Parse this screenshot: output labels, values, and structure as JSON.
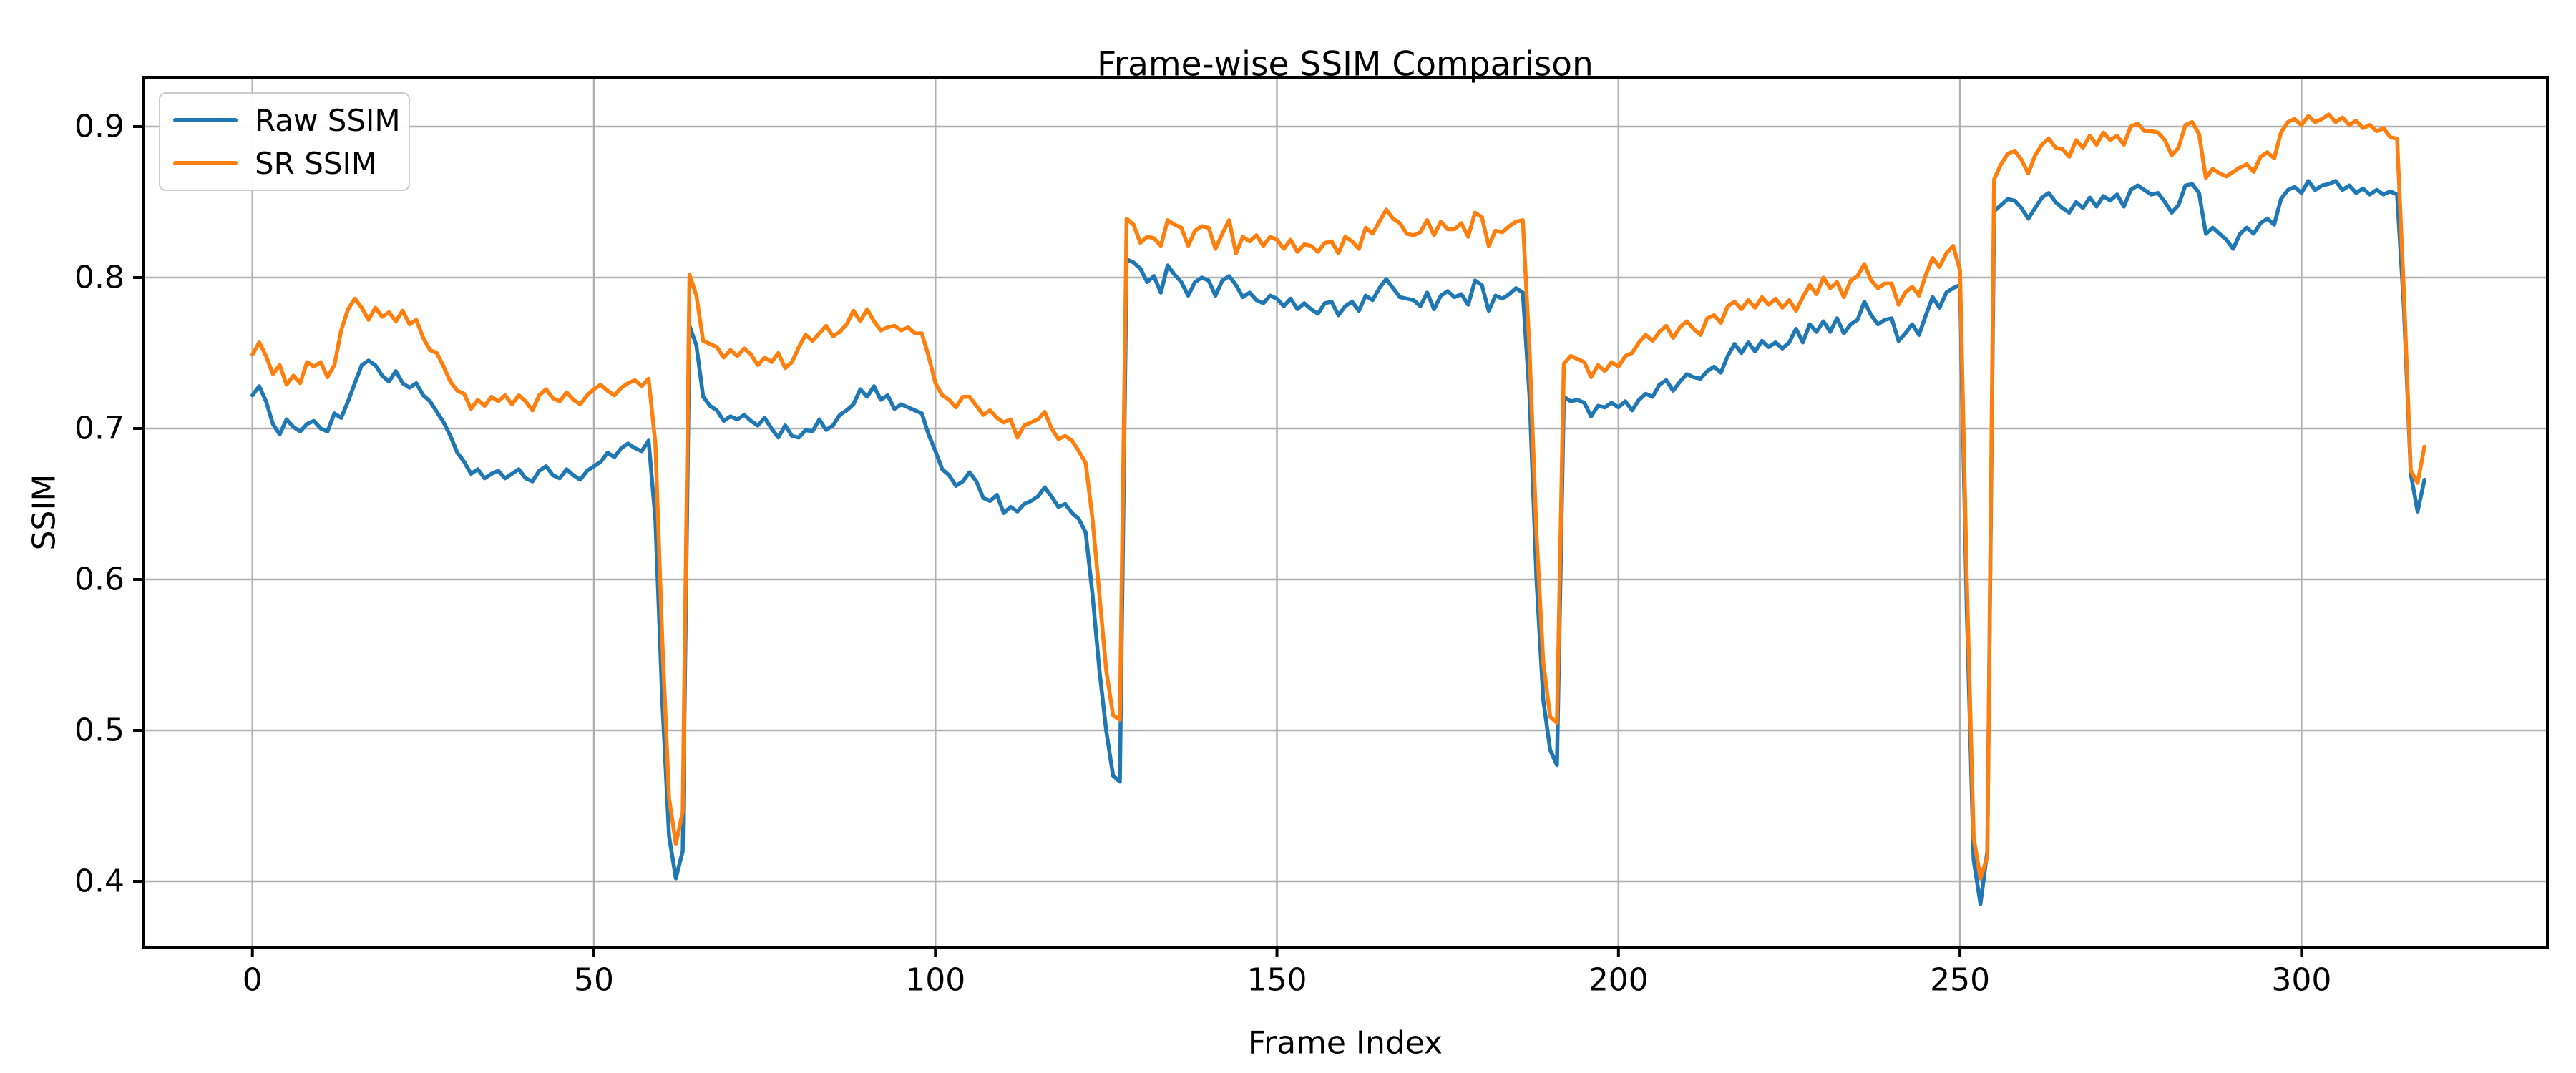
{
  "title": "Frame-wise SSIM Comparison",
  "legend": {
    "entries": [
      {
        "label": "Raw SSIM",
        "color": "#1f77b4"
      },
      {
        "label": "SR SSIM",
        "color": "#ff7f0e"
      }
    ]
  },
  "chart_data": {
    "type": "line",
    "title": "Frame-wise SSIM Comparison",
    "xlabel": "Frame Index",
    "ylabel": "SSIM",
    "xlim": [
      -16,
      336
    ],
    "ylim": [
      0.3564,
      0.9327
    ],
    "x_ticks": [
      0,
      50,
      100,
      150,
      200,
      250,
      300
    ],
    "y_ticks": [
      0.4,
      0.5,
      0.6,
      0.7,
      0.8,
      0.9
    ],
    "grid": true,
    "legend_position": "upper left",
    "x_start": 0,
    "x_step": 1,
    "series": [
      {
        "name": "Raw SSIM",
        "color": "#1f77b4",
        "values": [
          0.722,
          0.728,
          0.718,
          0.703,
          0.696,
          0.706,
          0.701,
          0.698,
          0.703,
          0.705,
          0.7,
          0.698,
          0.71,
          0.707,
          0.718,
          0.73,
          0.742,
          0.745,
          0.742,
          0.735,
          0.731,
          0.738,
          0.73,
          0.727,
          0.73,
          0.722,
          0.718,
          0.711,
          0.704,
          0.695,
          0.684,
          0.678,
          0.67,
          0.673,
          0.667,
          0.67,
          0.672,
          0.667,
          0.67,
          0.673,
          0.667,
          0.665,
          0.672,
          0.675,
          0.669,
          0.667,
          0.673,
          0.669,
          0.666,
          0.672,
          0.675,
          0.678,
          0.684,
          0.681,
          0.687,
          0.69,
          0.687,
          0.685,
          0.692,
          0.64,
          0.52,
          0.43,
          0.402,
          0.42,
          0.768,
          0.755,
          0.721,
          0.715,
          0.712,
          0.705,
          0.708,
          0.706,
          0.709,
          0.705,
          0.702,
          0.707,
          0.7,
          0.694,
          0.702,
          0.695,
          0.694,
          0.699,
          0.698,
          0.706,
          0.699,
          0.702,
          0.709,
          0.712,
          0.716,
          0.726,
          0.721,
          0.728,
          0.719,
          0.722,
          0.713,
          0.716,
          0.714,
          0.712,
          0.71,
          0.696,
          0.685,
          0.673,
          0.669,
          0.662,
          0.665,
          0.671,
          0.665,
          0.654,
          0.652,
          0.656,
          0.644,
          0.648,
          0.645,
          0.65,
          0.652,
          0.655,
          0.661,
          0.655,
          0.648,
          0.65,
          0.644,
          0.64,
          0.631,
          0.59,
          0.54,
          0.5,
          0.47,
          0.466,
          0.812,
          0.81,
          0.806,
          0.797,
          0.801,
          0.79,
          0.808,
          0.802,
          0.797,
          0.788,
          0.797,
          0.8,
          0.798,
          0.788,
          0.798,
          0.801,
          0.795,
          0.787,
          0.79,
          0.785,
          0.783,
          0.788,
          0.786,
          0.781,
          0.786,
          0.779,
          0.783,
          0.779,
          0.776,
          0.783,
          0.784,
          0.775,
          0.781,
          0.784,
          0.778,
          0.788,
          0.785,
          0.793,
          0.799,
          0.793,
          0.787,
          0.786,
          0.785,
          0.781,
          0.79,
          0.779,
          0.788,
          0.791,
          0.787,
          0.789,
          0.782,
          0.798,
          0.795,
          0.778,
          0.788,
          0.786,
          0.789,
          0.793,
          0.79,
          0.72,
          0.6,
          0.52,
          0.487,
          0.477,
          0.721,
          0.718,
          0.719,
          0.717,
          0.708,
          0.715,
          0.714,
          0.717,
          0.714,
          0.718,
          0.712,
          0.719,
          0.723,
          0.721,
          0.729,
          0.732,
          0.725,
          0.731,
          0.736,
          0.734,
          0.733,
          0.738,
          0.741,
          0.737,
          0.748,
          0.756,
          0.75,
          0.757,
          0.751,
          0.758,
          0.754,
          0.757,
          0.753,
          0.757,
          0.766,
          0.757,
          0.769,
          0.764,
          0.771,
          0.764,
          0.773,
          0.763,
          0.769,
          0.772,
          0.784,
          0.775,
          0.769,
          0.772,
          0.773,
          0.758,
          0.763,
          0.769,
          0.762,
          0.775,
          0.787,
          0.78,
          0.79,
          0.793,
          0.795,
          0.58,
          0.414,
          0.385,
          0.42,
          0.844,
          0.848,
          0.852,
          0.851,
          0.846,
          0.839,
          0.846,
          0.853,
          0.856,
          0.85,
          0.846,
          0.843,
          0.85,
          0.846,
          0.853,
          0.847,
          0.854,
          0.851,
          0.855,
          0.847,
          0.858,
          0.861,
          0.858,
          0.855,
          0.856,
          0.85,
          0.843,
          0.848,
          0.861,
          0.862,
          0.856,
          0.829,
          0.833,
          0.829,
          0.825,
          0.819,
          0.829,
          0.833,
          0.829,
          0.836,
          0.839,
          0.835,
          0.852,
          0.858,
          0.86,
          0.856,
          0.864,
          0.858,
          0.861,
          0.862,
          0.864,
          0.858,
          0.861,
          0.856,
          0.859,
          0.855,
          0.858,
          0.855,
          0.857,
          0.855,
          0.78,
          0.67,
          0.645,
          0.666
        ]
      },
      {
        "name": "SR SSIM",
        "color": "#ff7f0e",
        "values": [
          0.749,
          0.757,
          0.748,
          0.736,
          0.742,
          0.729,
          0.735,
          0.73,
          0.744,
          0.741,
          0.744,
          0.734,
          0.742,
          0.765,
          0.779,
          0.786,
          0.78,
          0.772,
          0.78,
          0.774,
          0.777,
          0.771,
          0.778,
          0.769,
          0.772,
          0.76,
          0.752,
          0.75,
          0.741,
          0.731,
          0.725,
          0.723,
          0.713,
          0.719,
          0.715,
          0.721,
          0.718,
          0.722,
          0.716,
          0.722,
          0.718,
          0.712,
          0.722,
          0.726,
          0.72,
          0.718,
          0.724,
          0.719,
          0.716,
          0.722,
          0.726,
          0.729,
          0.725,
          0.722,
          0.727,
          0.73,
          0.732,
          0.728,
          0.733,
          0.69,
          0.56,
          0.455,
          0.425,
          0.446,
          0.802,
          0.788,
          0.758,
          0.756,
          0.754,
          0.747,
          0.752,
          0.748,
          0.753,
          0.749,
          0.742,
          0.747,
          0.744,
          0.75,
          0.74,
          0.744,
          0.754,
          0.762,
          0.758,
          0.763,
          0.768,
          0.761,
          0.764,
          0.769,
          0.778,
          0.771,
          0.779,
          0.771,
          0.765,
          0.767,
          0.768,
          0.765,
          0.767,
          0.763,
          0.763,
          0.748,
          0.73,
          0.722,
          0.719,
          0.714,
          0.721,
          0.721,
          0.715,
          0.709,
          0.712,
          0.707,
          0.704,
          0.706,
          0.694,
          0.702,
          0.704,
          0.706,
          0.711,
          0.7,
          0.693,
          0.695,
          0.692,
          0.685,
          0.677,
          0.64,
          0.59,
          0.54,
          0.51,
          0.507,
          0.839,
          0.835,
          0.823,
          0.827,
          0.826,
          0.821,
          0.838,
          0.835,
          0.833,
          0.821,
          0.831,
          0.834,
          0.833,
          0.819,
          0.829,
          0.838,
          0.816,
          0.827,
          0.824,
          0.828,
          0.821,
          0.827,
          0.825,
          0.819,
          0.825,
          0.817,
          0.822,
          0.821,
          0.817,
          0.823,
          0.824,
          0.816,
          0.827,
          0.824,
          0.819,
          0.833,
          0.829,
          0.837,
          0.845,
          0.839,
          0.836,
          0.829,
          0.828,
          0.83,
          0.838,
          0.828,
          0.837,
          0.832,
          0.832,
          0.836,
          0.827,
          0.843,
          0.84,
          0.821,
          0.831,
          0.83,
          0.834,
          0.837,
          0.838,
          0.75,
          0.63,
          0.545,
          0.509,
          0.505,
          0.743,
          0.748,
          0.746,
          0.744,
          0.734,
          0.742,
          0.738,
          0.744,
          0.741,
          0.748,
          0.75,
          0.757,
          0.762,
          0.758,
          0.764,
          0.768,
          0.76,
          0.767,
          0.771,
          0.766,
          0.762,
          0.773,
          0.775,
          0.77,
          0.781,
          0.784,
          0.779,
          0.785,
          0.78,
          0.787,
          0.782,
          0.786,
          0.78,
          0.785,
          0.778,
          0.787,
          0.795,
          0.789,
          0.8,
          0.793,
          0.797,
          0.787,
          0.798,
          0.801,
          0.809,
          0.798,
          0.793,
          0.796,
          0.796,
          0.782,
          0.79,
          0.794,
          0.788,
          0.802,
          0.813,
          0.807,
          0.816,
          0.821,
          0.805,
          0.6,
          0.429,
          0.402,
          0.416,
          0.865,
          0.875,
          0.882,
          0.884,
          0.878,
          0.869,
          0.881,
          0.888,
          0.892,
          0.886,
          0.885,
          0.88,
          0.891,
          0.886,
          0.894,
          0.888,
          0.896,
          0.891,
          0.894,
          0.888,
          0.9,
          0.902,
          0.897,
          0.897,
          0.896,
          0.891,
          0.881,
          0.886,
          0.901,
          0.903,
          0.895,
          0.866,
          0.872,
          0.869,
          0.867,
          0.87,
          0.873,
          0.875,
          0.87,
          0.88,
          0.883,
          0.879,
          0.896,
          0.903,
          0.905,
          0.901,
          0.907,
          0.903,
          0.905,
          0.908,
          0.903,
          0.906,
          0.901,
          0.904,
          0.899,
          0.901,
          0.897,
          0.899,
          0.893,
          0.892,
          0.79,
          0.672,
          0.664,
          0.688
        ]
      }
    ]
  }
}
